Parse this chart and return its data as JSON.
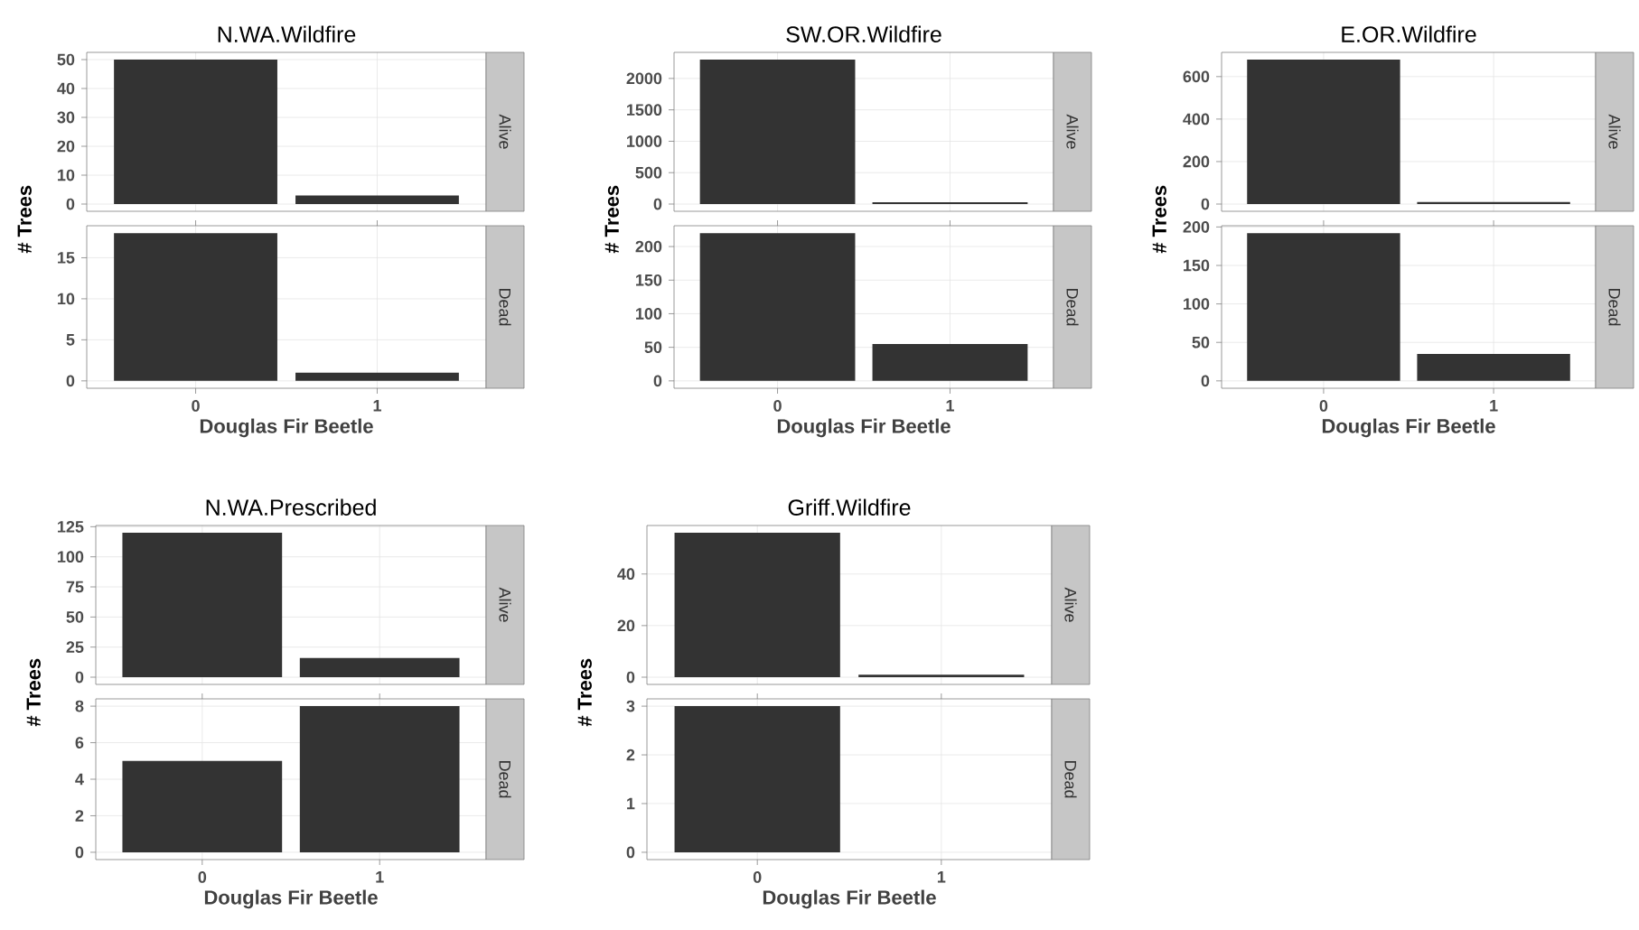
{
  "chart_data": [
    {
      "type": "bar",
      "title": "N.WA.Wildfire",
      "ylabel": "# Trees",
      "categories": [
        "0",
        "1"
      ],
      "values": [
        50,
        3
      ],
      "color": "#333333",
      "ylim": [
        -2.5,
        52.5
      ],
      "yticks": [
        0,
        10,
        20,
        30,
        40,
        50
      ],
      "grid": true,
      "tick_labels": "y",
      "annotations": [
        "Alive"
      ]
    },
    {
      "type": "bar",
      "xlabel": "Douglas Fir Beetle",
      "categories": [
        "0",
        "1"
      ],
      "values": [
        18,
        1
      ],
      "color": "#333333",
      "ylim": [
        -0.9,
        18.9
      ],
      "yticks": [
        0,
        5,
        10,
        15
      ],
      "grid": true,
      "annotations": [
        "Dead"
      ]
    },
    {
      "type": "bar",
      "title": "SW.OR.Wildfire",
      "ylabel": "# Trees",
      "categories": [
        "0",
        "1"
      ],
      "values": [
        2300,
        30
      ],
      "color": "#333333",
      "ylim": [
        -115,
        2415
      ],
      "yticks": [
        0,
        500,
        1000,
        1500,
        2000
      ],
      "grid": true,
      "tick_labels": "y",
      "annotations": [
        "Alive"
      ]
    },
    {
      "type": "bar",
      "xlabel": "Douglas Fir Beetle",
      "categories": [
        "0",
        "1"
      ],
      "values": [
        220,
        55
      ],
      "color": "#333333",
      "ylim": [
        -11,
        231
      ],
      "yticks": [
        0,
        50,
        100,
        150,
        200
      ],
      "grid": true,
      "annotations": [
        "Dead"
      ]
    },
    {
      "type": "bar",
      "title": "E.OR.Wildfire",
      "ylabel": "# Trees",
      "categories": [
        "0",
        "1"
      ],
      "values": [
        680,
        10
      ],
      "color": "#333333",
      "ylim": [
        -34,
        714
      ],
      "yticks": [
        0,
        200,
        400,
        600
      ],
      "grid": true,
      "tick_labels": "y",
      "annotations": [
        "Alive"
      ]
    },
    {
      "type": "bar",
      "xlabel": "Douglas Fir Beetle",
      "categories": [
        "0",
        "1"
      ],
      "values": [
        192,
        35
      ],
      "color": "#333333",
      "ylim": [
        -9.6,
        201.6
      ],
      "yticks": [
        0,
        50,
        100,
        150,
        200
      ],
      "grid": true,
      "annotations": [
        "Dead"
      ]
    },
    {
      "type": "bar",
      "title": "N.WA.Prescribed",
      "ylabel": "# Trees",
      "categories": [
        "0",
        "1"
      ],
      "values": [
        120,
        16
      ],
      "color": "#333333",
      "ylim": [
        -6,
        126
      ],
      "yticks": [
        0,
        25,
        50,
        75,
        100,
        125
      ],
      "grid": true,
      "tick_labels": "y",
      "annotations": [
        "Alive"
      ]
    },
    {
      "type": "bar",
      "xlabel": "Douglas Fir Beetle",
      "categories": [
        "0",
        "1"
      ],
      "values": [
        5,
        8
      ],
      "color": "#333333",
      "ylim": [
        -0.4,
        8.4
      ],
      "yticks": [
        0,
        2,
        4,
        6,
        8
      ],
      "grid": true,
      "annotations": [
        "Dead"
      ]
    },
    {
      "type": "bar",
      "title": "Griff.Wildfire",
      "ylabel": "# Trees",
      "categories": [
        "0",
        "1"
      ],
      "values": [
        56,
        1
      ],
      "color": "#333333",
      "ylim": [
        -2.8,
        58.8
      ],
      "yticks": [
        0,
        20,
        40
      ],
      "grid": true,
      "tick_labels": "y",
      "annotations": [
        "Alive"
      ]
    },
    {
      "type": "bar",
      "xlabel": "Douglas Fir Beetle",
      "categories": [
        "0",
        "1"
      ],
      "values": [
        3,
        0
      ],
      "color": "#333333",
      "ylim": [
        -0.15,
        3.15
      ],
      "yticks": [
        0,
        1,
        2,
        3
      ],
      "grid": true,
      "annotations": [
        "Dead"
      ]
    }
  ]
}
